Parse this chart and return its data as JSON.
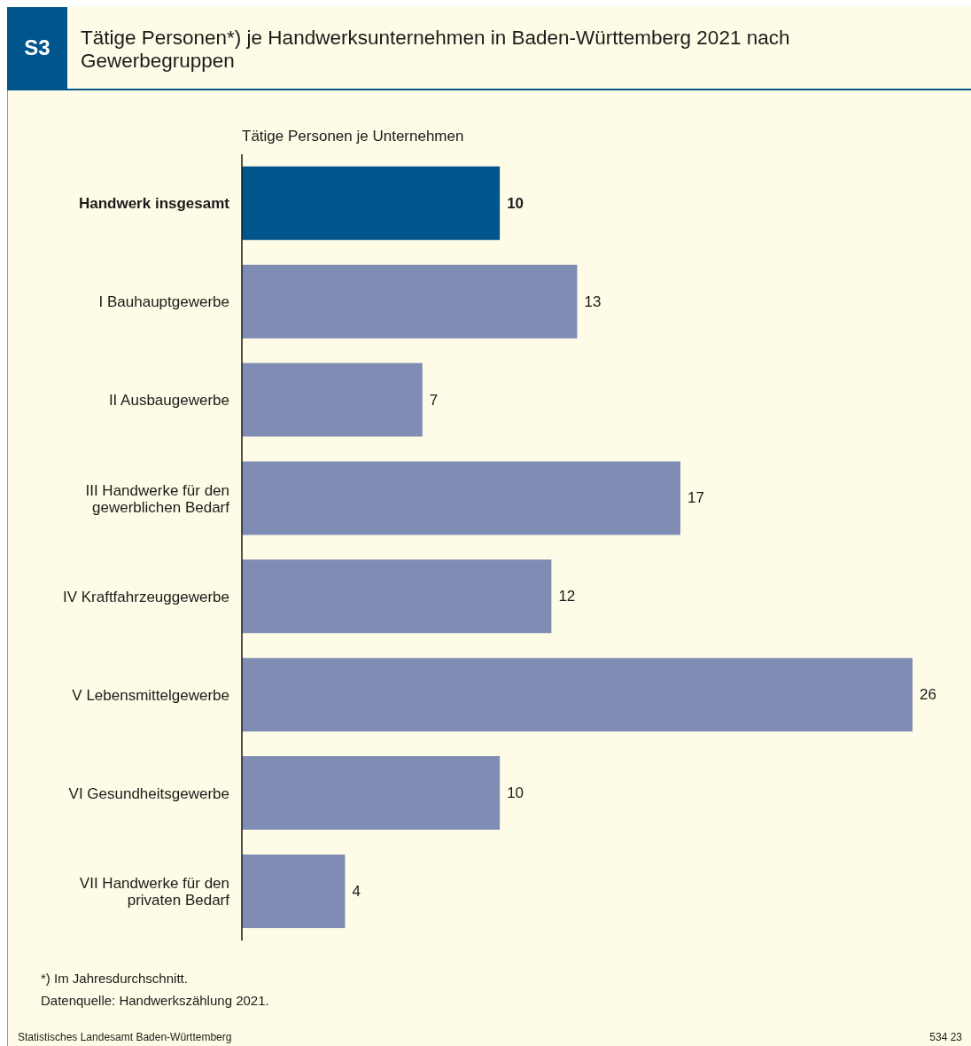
{
  "chart_data": {
    "type": "bar",
    "orientation": "horizontal",
    "title": "Tätige Personen*) je Handwerksunternehmen in Baden-Württemberg 2021 nach Gewerbegruppen",
    "xlabel": "Tätige Personen je Unternehmen",
    "categories": [
      "Handwerk insgesamt",
      "I Bauhauptgewerbe",
      "II Ausbaugewerbe",
      "III Handwerke für den gewerblichen Bedarf",
      "IV Kraftfahrzeuggewerbe",
      "V Lebensmittelgewerbe",
      "VI Gesundheitsgewerbe",
      "VII Handwerke für den privaten Bedarf"
    ],
    "values": [
      10,
      13,
      7,
      17,
      12,
      26,
      10,
      4
    ],
    "colors": [
      "#00558c",
      "#7f8db5",
      "#7f8db5",
      "#7f8db5",
      "#7f8db5",
      "#7f8db5",
      "#7f8db5",
      "#7f8db5"
    ],
    "data_labels": true,
    "annotations": [
      "S3",
      "*) Im Jahresdurchschnitt.",
      "Datenquelle: Handwerkszählung 2021.",
      "Statistisches Landesamt Baden-Württemberg",
      "534 23"
    ]
  }
}
